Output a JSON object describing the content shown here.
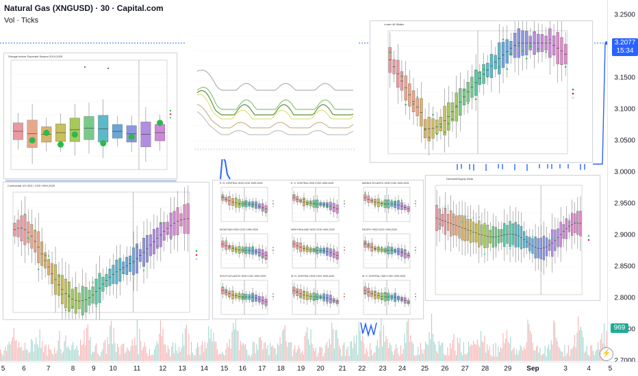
{
  "header": {
    "symbol_title": "Natural Gas (XNGUSD) · 30 · Capital.com",
    "volume_title": "Vol · Ticks"
  },
  "price_axis": {
    "ticks": [
      "3.2500",
      "3.2000",
      "3.1500",
      "3.1000",
      "3.0500",
      "3.0000",
      "2.9500",
      "2.9000",
      "2.8500",
      "2.8000",
      "2.7500",
      "2.7000"
    ],
    "last_price": "3.2077",
    "countdown": "15:34",
    "volume_value": "969"
  },
  "time_axis": {
    "ticks": [
      "5",
      "6",
      "7",
      "8",
      "9",
      "10",
      "11",
      "12",
      "13",
      "14",
      "15",
      "16",
      "17",
      "18",
      "19",
      "20",
      "21",
      "22",
      "23",
      "24",
      "25",
      "26",
      "27",
      "28",
      "29",
      "Sep",
      "3",
      "4",
      "5"
    ]
  },
  "colors": {
    "up": "#26a69a",
    "down": "#ef5350",
    "price_line": "#2962ff",
    "volume_badge": "#22ab94"
  },
  "panels": {
    "p1": {
      "title": "Storage before Expected Season 2019-2025"
    },
    "p3": {
      "title": "Lower 48 States"
    },
    "p4": {
      "title": "Continental US HDD / CDD 1999-2025"
    },
    "p5": {
      "titles": [
        "E. N. CENTRAL HDD+CDD 1999-2025",
        "E. S. CENTRAL HDD+CDD 1999-2025",
        "MIDDLE ATLANTIC HDD+CDD 1999-2025",
        "MOUNTAIN HDD+CDD 1999-2025",
        "NEW ENGLAND HDD+CDD 1999-2025",
        "PACIFIC HDD+CDD 1999-2025",
        "SOUTH ATLANTIC HDD+CDD 1999-2025",
        "W. N. CENTRAL HDD+CDD 1999-2025",
        "W. S. CENTRAL HDD+CDD 1999-2025"
      ]
    },
    "p6": {
      "title": "Demand/Supply Delta"
    }
  },
  "icons": {
    "lightning": "lightning-icon"
  }
}
